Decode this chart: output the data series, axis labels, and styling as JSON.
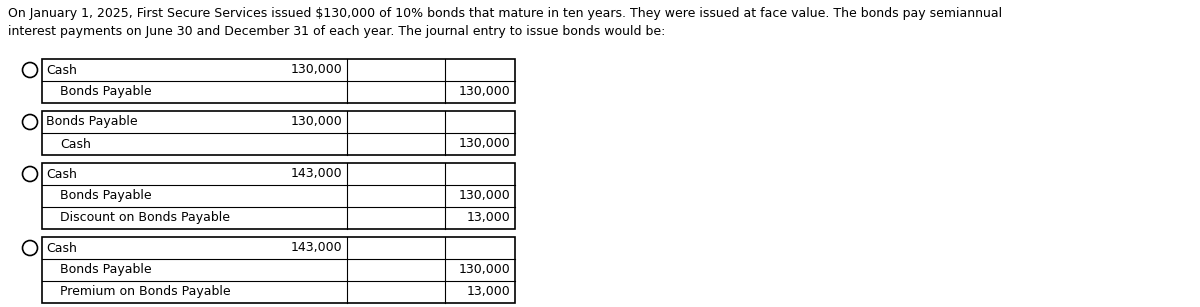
{
  "title_text": "On January 1, 2025, First Secure Services issued $130,000 of 10% bonds that mature in ten years. They were issued at face value. The bonds pay semiannual\ninterest payments on June 30 and December 31 of each year. The journal entry to issue bonds would be:",
  "options": [
    {
      "rows": [
        {
          "account": "Cash",
          "debit": "130,000",
          "credit": ""
        },
        {
          "account": "  Bonds Payable",
          "debit": "",
          "credit": "130,000"
        }
      ]
    },
    {
      "rows": [
        {
          "account": "Bonds Payable",
          "debit": "130,000",
          "credit": ""
        },
        {
          "account": "  Cash",
          "debit": "",
          "credit": "130,000"
        }
      ]
    },
    {
      "rows": [
        {
          "account": "Cash",
          "debit": "143,000",
          "credit": ""
        },
        {
          "account": "  Bonds Payable",
          "debit": "",
          "credit": "130,000"
        },
        {
          "account": "  Discount on Bonds Payable",
          "debit": "",
          "credit": "13,000"
        }
      ]
    },
    {
      "rows": [
        {
          "account": "Cash",
          "debit": "143,000",
          "credit": ""
        },
        {
          "account": "  Bonds Payable",
          "debit": "",
          "credit": "130,000"
        },
        {
          "account": "  Premium on Bonds Payable",
          "debit": "",
          "credit": "13,000"
        }
      ]
    }
  ],
  "background_color": "#ffffff",
  "table_edge_color": "#000000",
  "text_color": "#000000",
  "font_size": 9.0,
  "title_font_size": 9.0
}
